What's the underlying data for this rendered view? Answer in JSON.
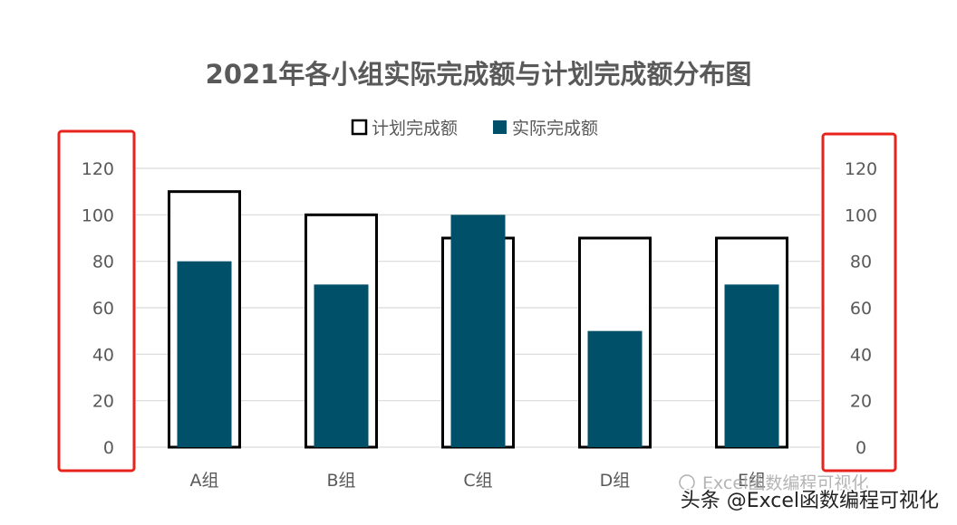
{
  "chart_data": {
    "type": "bar",
    "title": "2021年各小组实际完成额与计划完成额分布图",
    "categories": [
      "A组",
      "B组",
      "C组",
      "D组",
      "E组"
    ],
    "series": [
      {
        "name": "计划完成额",
        "values": [
          110,
          100,
          90,
          90,
          90
        ]
      },
      {
        "name": "实际完成额",
        "values": [
          80,
          70,
          100,
          50,
          70
        ]
      }
    ],
    "ylim": [
      0,
      120
    ],
    "yticks": [
      0,
      20,
      40,
      60,
      80,
      100,
      120
    ],
    "legend_position": "top",
    "grid": true,
    "colors": {
      "plan_fill": "#ffffff",
      "plan_stroke": "#000000",
      "actual_fill": "#00506a",
      "grid": "#d9d9d9",
      "highlight_box": "#e8231c",
      "text": "#595959"
    }
  },
  "watermark": {
    "line1": "Excel函数编程可视化",
    "line2": "头条 @Excel函数编程可视化"
  }
}
